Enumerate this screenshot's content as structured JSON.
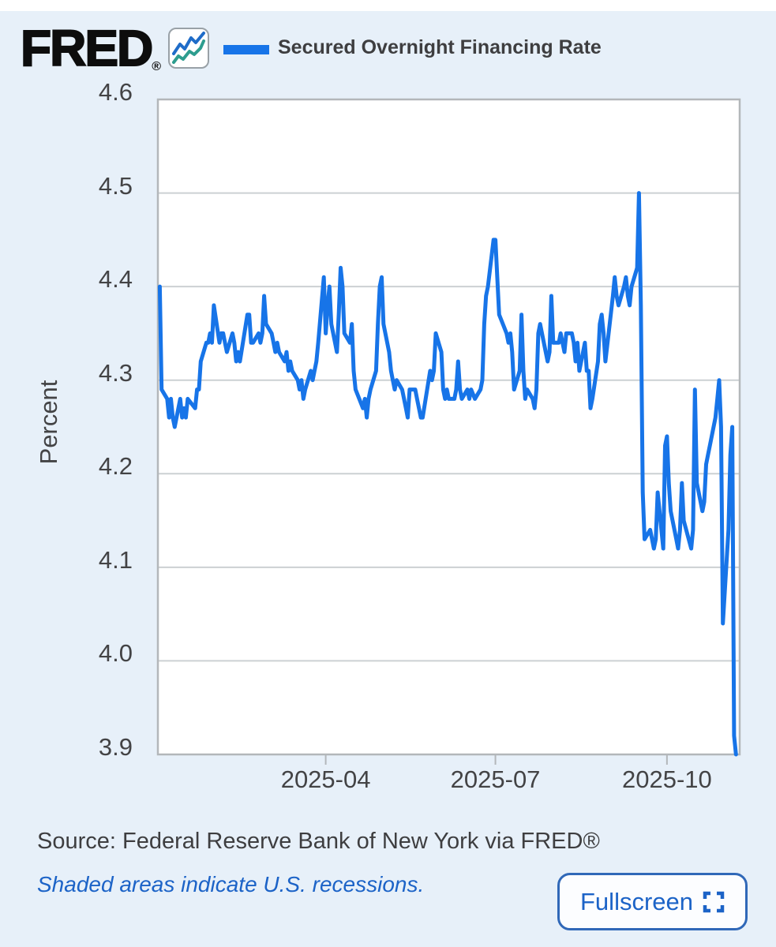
{
  "header": {
    "logo_text": "FRED",
    "registered_mark": "®",
    "legend_label": "Secured Overnight Financing Rate"
  },
  "footer": {
    "source_text": "Source: Federal Reserve Bank of New York via FRED®",
    "recession_note": "Shaded areas indicate U.S. recessions.",
    "fullscreen_label": "Fullscreen"
  },
  "icons": {
    "logo_icon": "mini-line-chart-icon",
    "fullscreen_icon": "fullscreen-corners-icon"
  },
  "colors": {
    "page_background": "#e7f0f9",
    "plot_background": "#ffffff",
    "line_blue": "#1774e8",
    "icon_teal": "#2d9d8f",
    "gridline": "#ccd0d3",
    "plot_border": "#b3b7ba",
    "axis_text": "#434345",
    "dark_text": "#3e3e40",
    "link_blue": "#1c63c7"
  },
  "chart_data": {
    "type": "line",
    "title": "Secured Overnight Financing Rate",
    "xlabel": "",
    "ylabel": "Percent",
    "ylim": [
      3.9,
      4.6
    ],
    "x_domain": [
      "2025-01-01",
      "2025-11-09"
    ],
    "grid": true,
    "legend_position": "top",
    "y_ticks": [
      {
        "label": "4.6",
        "value": 4.6
      },
      {
        "label": "4.5",
        "value": 4.5
      },
      {
        "label": "4.4",
        "value": 4.4
      },
      {
        "label": "4.3",
        "value": 4.3
      },
      {
        "label": "4.2",
        "value": 4.2
      },
      {
        "label": "4.1",
        "value": 4.1
      },
      {
        "label": "4.0",
        "value": 4.0
      },
      {
        "label": "3.9",
        "value": 3.9
      }
    ],
    "x_ticks": [
      {
        "label": "2025-04",
        "date": "2025-04-01"
      },
      {
        "label": "2025-07",
        "date": "2025-07-01"
      },
      {
        "label": "2025-10",
        "date": "2025-10-01"
      }
    ],
    "series": [
      {
        "name": "Secured Overnight Financing Rate",
        "color": "#1774e8",
        "points": [
          [
            "2025-01-02",
            4.4
          ],
          [
            "2025-01-03",
            4.29
          ],
          [
            "2025-01-06",
            4.28
          ],
          [
            "2025-01-07",
            4.26
          ],
          [
            "2025-01-08",
            4.28
          ],
          [
            "2025-01-09",
            4.26
          ],
          [
            "2025-01-10",
            4.25
          ],
          [
            "2025-01-13",
            4.28
          ],
          [
            "2025-01-14",
            4.26
          ],
          [
            "2025-01-15",
            4.27
          ],
          [
            "2025-01-16",
            4.26
          ],
          [
            "2025-01-17",
            4.28
          ],
          [
            "2025-01-21",
            4.27
          ],
          [
            "2025-01-22",
            4.29
          ],
          [
            "2025-01-23",
            4.29
          ],
          [
            "2025-01-24",
            4.32
          ],
          [
            "2025-01-27",
            4.34
          ],
          [
            "2025-01-28",
            4.34
          ],
          [
            "2025-01-29",
            4.35
          ],
          [
            "2025-01-30",
            4.34
          ],
          [
            "2025-01-31",
            4.38
          ],
          [
            "2025-02-03",
            4.34
          ],
          [
            "2025-02-04",
            4.35
          ],
          [
            "2025-02-05",
            4.35
          ],
          [
            "2025-02-06",
            4.34
          ],
          [
            "2025-02-07",
            4.33
          ],
          [
            "2025-02-10",
            4.35
          ],
          [
            "2025-02-11",
            4.34
          ],
          [
            "2025-02-12",
            4.32
          ],
          [
            "2025-02-13",
            4.33
          ],
          [
            "2025-02-14",
            4.32
          ],
          [
            "2025-02-18",
            4.37
          ],
          [
            "2025-02-19",
            4.37
          ],
          [
            "2025-02-20",
            4.34
          ],
          [
            "2025-02-21",
            4.34
          ],
          [
            "2025-02-24",
            4.35
          ],
          [
            "2025-02-25",
            4.34
          ],
          [
            "2025-02-26",
            4.35
          ],
          [
            "2025-02-27",
            4.39
          ],
          [
            "2025-02-28",
            4.36
          ],
          [
            "2025-03-03",
            4.35
          ],
          [
            "2025-03-04",
            4.34
          ],
          [
            "2025-03-05",
            4.33
          ],
          [
            "2025-03-06",
            4.34
          ],
          [
            "2025-03-07",
            4.33
          ],
          [
            "2025-03-10",
            4.32
          ],
          [
            "2025-03-11",
            4.33
          ],
          [
            "2025-03-12",
            4.31
          ],
          [
            "2025-03-13",
            4.32
          ],
          [
            "2025-03-14",
            4.31
          ],
          [
            "2025-03-17",
            4.3
          ],
          [
            "2025-03-18",
            4.29
          ],
          [
            "2025-03-19",
            4.3
          ],
          [
            "2025-03-20",
            4.28
          ],
          [
            "2025-03-21",
            4.29
          ],
          [
            "2025-03-24",
            4.31
          ],
          [
            "2025-03-25",
            4.3
          ],
          [
            "2025-03-26",
            4.31
          ],
          [
            "2025-03-27",
            4.32
          ],
          [
            "2025-03-28",
            4.34
          ],
          [
            "2025-03-31",
            4.41
          ],
          [
            "2025-04-01",
            4.35
          ],
          [
            "2025-04-02",
            4.38
          ],
          [
            "2025-04-03",
            4.4
          ],
          [
            "2025-04-04",
            4.36
          ],
          [
            "2025-04-07",
            4.33
          ],
          [
            "2025-04-08",
            4.37
          ],
          [
            "2025-04-09",
            4.42
          ],
          [
            "2025-04-10",
            4.4
          ],
          [
            "2025-04-11",
            4.35
          ],
          [
            "2025-04-14",
            4.34
          ],
          [
            "2025-04-15",
            4.36
          ],
          [
            "2025-04-16",
            4.31
          ],
          [
            "2025-04-17",
            4.29
          ],
          [
            "2025-04-21",
            4.27
          ],
          [
            "2025-04-22",
            4.28
          ],
          [
            "2025-04-23",
            4.26
          ],
          [
            "2025-04-24",
            4.28
          ],
          [
            "2025-04-25",
            4.29
          ],
          [
            "2025-04-28",
            4.31
          ],
          [
            "2025-04-29",
            4.36
          ],
          [
            "2025-04-30",
            4.4
          ],
          [
            "2025-05-01",
            4.41
          ],
          [
            "2025-05-02",
            4.36
          ],
          [
            "2025-05-05",
            4.33
          ],
          [
            "2025-05-06",
            4.31
          ],
          [
            "2025-05-07",
            4.3
          ],
          [
            "2025-05-08",
            4.29
          ],
          [
            "2025-05-09",
            4.3
          ],
          [
            "2025-05-12",
            4.29
          ],
          [
            "2025-05-13",
            4.28
          ],
          [
            "2025-05-14",
            4.27
          ],
          [
            "2025-05-15",
            4.26
          ],
          [
            "2025-05-16",
            4.29
          ],
          [
            "2025-05-19",
            4.29
          ],
          [
            "2025-05-20",
            4.28
          ],
          [
            "2025-05-21",
            4.27
          ],
          [
            "2025-05-22",
            4.26
          ],
          [
            "2025-05-23",
            4.26
          ],
          [
            "2025-05-27",
            4.31
          ],
          [
            "2025-05-28",
            4.3
          ],
          [
            "2025-05-29",
            4.31
          ],
          [
            "2025-05-30",
            4.35
          ],
          [
            "2025-06-02",
            4.33
          ],
          [
            "2025-06-03",
            4.29
          ],
          [
            "2025-06-04",
            4.28
          ],
          [
            "2025-06-05",
            4.29
          ],
          [
            "2025-06-06",
            4.28
          ],
          [
            "2025-06-09",
            4.28
          ],
          [
            "2025-06-10",
            4.29
          ],
          [
            "2025-06-11",
            4.32
          ],
          [
            "2025-06-12",
            4.29
          ],
          [
            "2025-06-13",
            4.28
          ],
          [
            "2025-06-16",
            4.29
          ],
          [
            "2025-06-17",
            4.28
          ],
          [
            "2025-06-18",
            4.29
          ],
          [
            "2025-06-20",
            4.28
          ],
          [
            "2025-06-23",
            4.29
          ],
          [
            "2025-06-24",
            4.3
          ],
          [
            "2025-06-25",
            4.36
          ],
          [
            "2025-06-26",
            4.39
          ],
          [
            "2025-06-27",
            4.4
          ],
          [
            "2025-06-30",
            4.45
          ],
          [
            "2025-07-01",
            4.45
          ],
          [
            "2025-07-02",
            4.41
          ],
          [
            "2025-07-03",
            4.37
          ],
          [
            "2025-07-07",
            4.35
          ],
          [
            "2025-07-08",
            4.34
          ],
          [
            "2025-07-09",
            4.35
          ],
          [
            "2025-07-10",
            4.33
          ],
          [
            "2025-07-11",
            4.29
          ],
          [
            "2025-07-14",
            4.31
          ],
          [
            "2025-07-15",
            4.37
          ],
          [
            "2025-07-16",
            4.31
          ],
          [
            "2025-07-17",
            4.28
          ],
          [
            "2025-07-18",
            4.29
          ],
          [
            "2025-07-21",
            4.28
          ],
          [
            "2025-07-22",
            4.27
          ],
          [
            "2025-07-23",
            4.29
          ],
          [
            "2025-07-24",
            4.35
          ],
          [
            "2025-07-25",
            4.36
          ],
          [
            "2025-07-28",
            4.33
          ],
          [
            "2025-07-29",
            4.32
          ],
          [
            "2025-07-30",
            4.33
          ],
          [
            "2025-07-31",
            4.39
          ],
          [
            "2025-08-01",
            4.34
          ],
          [
            "2025-08-04",
            4.34
          ],
          [
            "2025-08-05",
            4.35
          ],
          [
            "2025-08-06",
            4.34
          ],
          [
            "2025-08-07",
            4.33
          ],
          [
            "2025-08-08",
            4.35
          ],
          [
            "2025-08-11",
            4.35
          ],
          [
            "2025-08-12",
            4.34
          ],
          [
            "2025-08-13",
            4.32
          ],
          [
            "2025-08-14",
            4.34
          ],
          [
            "2025-08-15",
            4.31
          ],
          [
            "2025-08-18",
            4.34
          ],
          [
            "2025-08-19",
            4.31
          ],
          [
            "2025-08-20",
            4.31
          ],
          [
            "2025-08-21",
            4.27
          ],
          [
            "2025-08-22",
            4.28
          ],
          [
            "2025-08-25",
            4.32
          ],
          [
            "2025-08-26",
            4.36
          ],
          [
            "2025-08-27",
            4.37
          ],
          [
            "2025-08-28",
            4.35
          ],
          [
            "2025-08-29",
            4.32
          ],
          [
            "2025-09-02",
            4.39
          ],
          [
            "2025-09-03",
            4.41
          ],
          [
            "2025-09-04",
            4.39
          ],
          [
            "2025-09-05",
            4.38
          ],
          [
            "2025-09-08",
            4.4
          ],
          [
            "2025-09-09",
            4.41
          ],
          [
            "2025-09-10",
            4.39
          ],
          [
            "2025-09-11",
            4.38
          ],
          [
            "2025-09-12",
            4.4
          ],
          [
            "2025-09-15",
            4.42
          ],
          [
            "2025-09-16",
            4.5
          ],
          [
            "2025-09-17",
            4.38
          ],
          [
            "2025-09-18",
            4.18
          ],
          [
            "2025-09-19",
            4.13
          ],
          [
            "2025-09-22",
            4.14
          ],
          [
            "2025-09-23",
            4.13
          ],
          [
            "2025-09-24",
            4.12
          ],
          [
            "2025-09-25",
            4.13
          ],
          [
            "2025-09-26",
            4.18
          ],
          [
            "2025-09-29",
            4.12
          ],
          [
            "2025-09-30",
            4.23
          ],
          [
            "2025-10-01",
            4.24
          ],
          [
            "2025-10-02",
            4.19
          ],
          [
            "2025-10-03",
            4.16
          ],
          [
            "2025-10-06",
            4.13
          ],
          [
            "2025-10-07",
            4.12
          ],
          [
            "2025-10-08",
            4.14
          ],
          [
            "2025-10-09",
            4.19
          ],
          [
            "2025-10-10",
            4.15
          ],
          [
            "2025-10-14",
            4.12
          ],
          [
            "2025-10-15",
            4.14
          ],
          [
            "2025-10-16",
            4.29
          ],
          [
            "2025-10-17",
            4.19
          ],
          [
            "2025-10-20",
            4.16
          ],
          [
            "2025-10-21",
            4.17
          ],
          [
            "2025-10-22",
            4.21
          ],
          [
            "2025-10-23",
            4.22
          ],
          [
            "2025-10-24",
            4.23
          ],
          [
            "2025-10-27",
            4.26
          ],
          [
            "2025-10-28",
            4.28
          ],
          [
            "2025-10-29",
            4.3
          ],
          [
            "2025-10-30",
            4.25
          ],
          [
            "2025-10-31",
            4.04
          ],
          [
            "2025-11-03",
            4.14
          ],
          [
            "2025-11-04",
            4.22
          ],
          [
            "2025-11-05",
            4.25
          ],
          [
            "2025-11-06",
            3.92
          ],
          [
            "2025-11-07",
            3.9
          ]
        ]
      }
    ]
  }
}
